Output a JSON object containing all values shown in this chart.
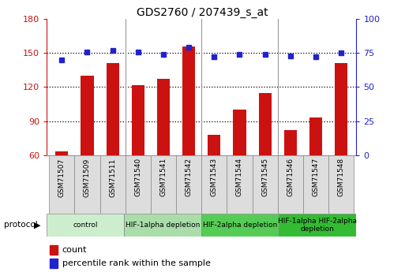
{
  "title": "GDS2760 / 207439_s_at",
  "samples": [
    "GSM71507",
    "GSM71509",
    "GSM71511",
    "GSM71540",
    "GSM71541",
    "GSM71542",
    "GSM71543",
    "GSM71544",
    "GSM71545",
    "GSM71546",
    "GSM71547",
    "GSM71548"
  ],
  "bar_values": [
    63,
    130,
    141,
    122,
    127,
    156,
    78,
    100,
    115,
    82,
    93,
    141
  ],
  "dot_values": [
    70,
    76,
    77,
    76,
    74,
    79,
    72,
    74,
    74,
    73,
    72,
    75
  ],
  "ylim_left": [
    60,
    180
  ],
  "ylim_right": [
    0,
    100
  ],
  "yticks_left": [
    60,
    90,
    120,
    150,
    180
  ],
  "yticks_right": [
    0,
    25,
    50,
    75,
    100
  ],
  "bar_color": "#cc1111",
  "dot_color": "#2222cc",
  "grid_lines": [
    90,
    120,
    150
  ],
  "groups": [
    {
      "label": "control",
      "start": 0,
      "end": 3,
      "color": "#cceecc"
    },
    {
      "label": "HIF-1alpha depletion",
      "start": 3,
      "end": 6,
      "color": "#aaddaa"
    },
    {
      "label": "HIF-2alpha depletion",
      "start": 6,
      "end": 9,
      "color": "#55cc55"
    },
    {
      "label": "HIF-1alpha HIF-2alpha\ndepletion",
      "start": 9,
      "end": 12,
      "color": "#33bb33"
    }
  ],
  "protocol_label": "protocol",
  "legend_count_label": "count",
  "legend_pct_label": "percentile rank within the sample",
  "bar_width": 0.5,
  "tick_label_color_left": "#cc1111",
  "tick_label_color_right": "#2222cc",
  "grid_color": "#000000",
  "separator_color": "#999999",
  "sample_box_color": "#dddddd",
  "group_border_color": "#888888"
}
